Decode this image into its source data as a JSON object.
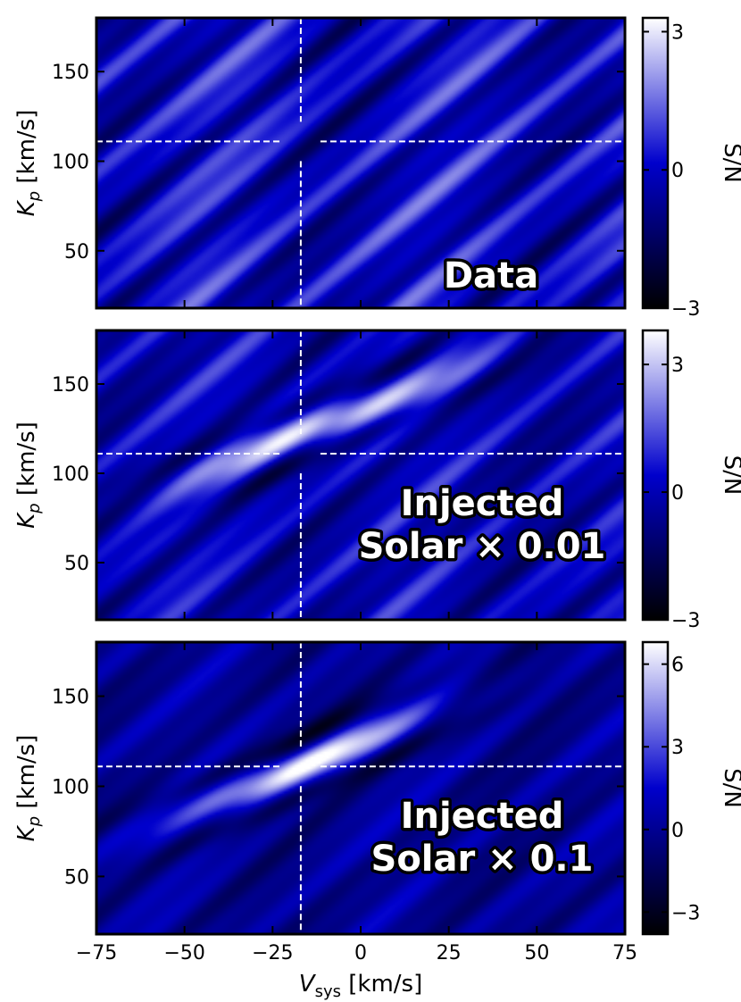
{
  "chart_data": [
    {
      "type": "heatmap",
      "panel_label": [
        "Data"
      ],
      "xlabel": "",
      "ylabel_main": "K",
      "ylabel_sub": "p",
      "ylabel_unit": " [km/s]",
      "x_range": [
        -75,
        75
      ],
      "y_range": [
        18,
        180
      ],
      "y_ticks": [
        50,
        100,
        150
      ],
      "colorbar": {
        "label": "S/N",
        "range": [
          -3,
          3.3
        ],
        "ticks": [
          -3,
          0,
          3
        ],
        "tick_labels": [
          "−3",
          "0",
          "3"
        ]
      },
      "colormap": [
        "#000000",
        "#0000cc",
        "#ffffff"
      ],
      "crosshair": {
        "x": -17,
        "y": 111
      },
      "signal_peak": null,
      "peak_sn": 0
    },
    {
      "type": "heatmap",
      "panel_label": [
        "Injected",
        "Solar × 0.01"
      ],
      "xlabel": "",
      "ylabel_main": "K",
      "ylabel_sub": "p",
      "ylabel_unit": " [km/s]",
      "x_range": [
        -75,
        75
      ],
      "y_range": [
        18,
        180
      ],
      "y_ticks": [
        50,
        100,
        150
      ],
      "colorbar": {
        "label": "S/N",
        "range": [
          -3,
          3.8
        ],
        "ticks": [
          -3,
          0,
          3
        ],
        "tick_labels": [
          "−3",
          "0",
          "3"
        ]
      },
      "colormap": [
        "#000000",
        "#0000cc",
        "#ffffff"
      ],
      "crosshair": {
        "x": -17,
        "y": 111
      },
      "signal_peak": {
        "x": -10,
        "y": 128
      },
      "peak_sn": 3.8
    },
    {
      "type": "heatmap",
      "panel_label": [
        "Injected",
        "Solar × 0.1"
      ],
      "xlabel_main": "V",
      "xlabel_sub": "sys",
      "xlabel_unit": " [km/s]",
      "ylabel_main": "K",
      "ylabel_sub": "p",
      "ylabel_unit": " [km/s]",
      "x_range": [
        -75,
        75
      ],
      "y_range": [
        18,
        180
      ],
      "x_ticks": [
        -75,
        -50,
        -25,
        0,
        25,
        50,
        75
      ],
      "x_tick_labels": [
        "−75",
        "−50",
        "−25",
        "0",
        "25",
        "50",
        "75"
      ],
      "y_ticks": [
        50,
        100,
        150
      ],
      "colorbar": {
        "label": "S/N",
        "range": [
          -3.8,
          6.8
        ],
        "ticks": [
          -3,
          0,
          3,
          6
        ],
        "tick_labels": [
          "−3",
          "0",
          "3",
          "6"
        ]
      },
      "colormap": [
        "#000000",
        "#0000cc",
        "#ffffff"
      ],
      "crosshair": {
        "x": -17,
        "y": 111
      },
      "signal_peak": {
        "x": -17,
        "y": 111
      },
      "peak_sn": 6.8
    }
  ]
}
